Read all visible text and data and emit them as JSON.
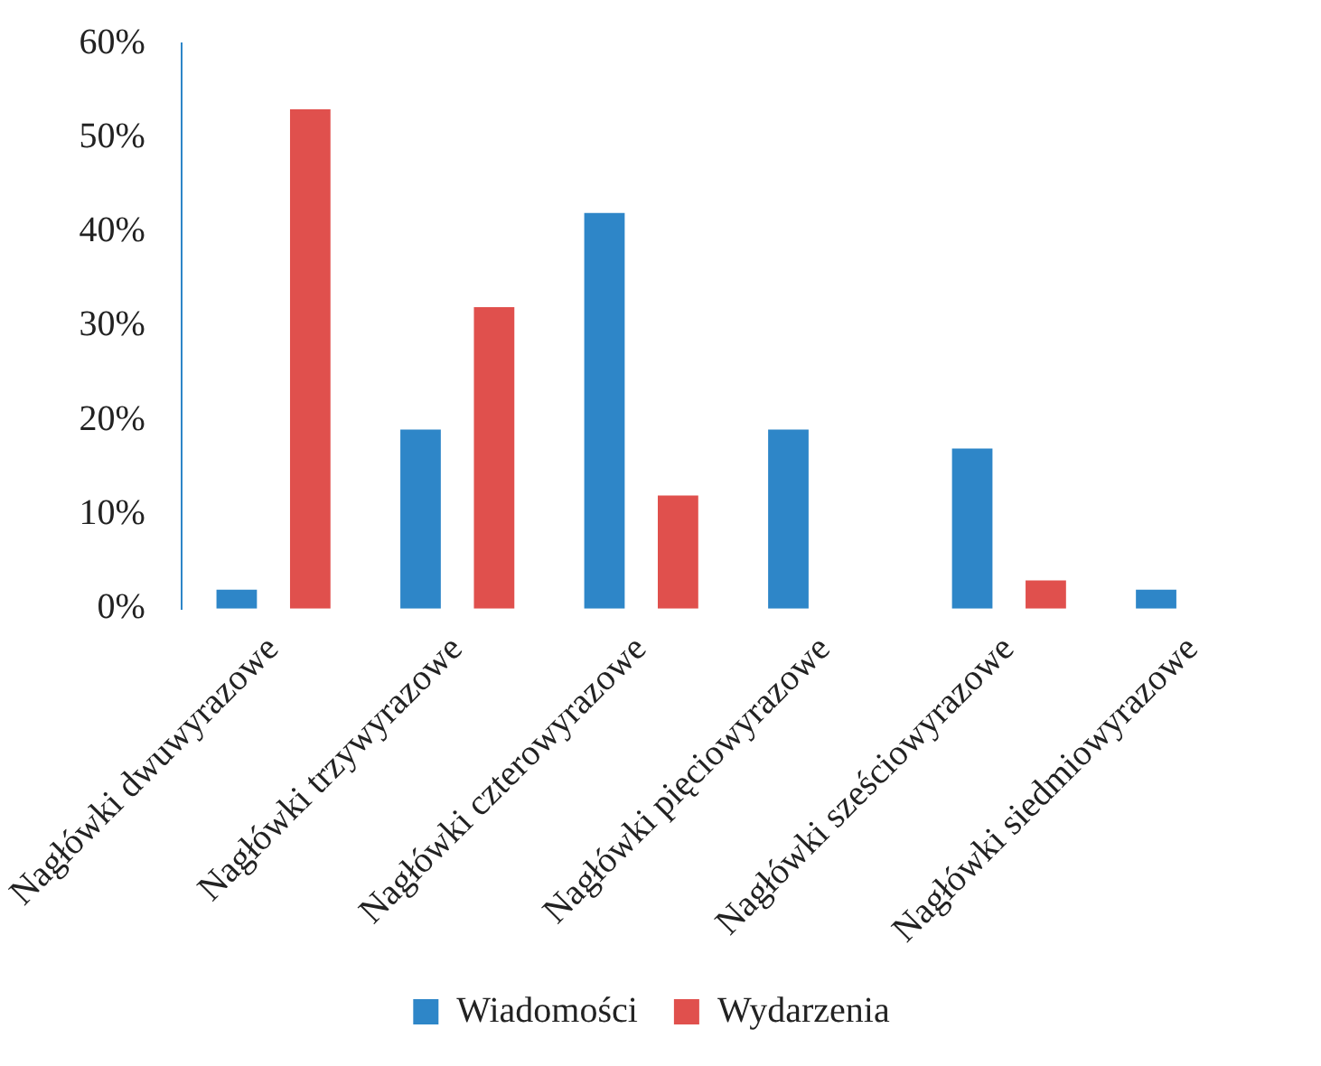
{
  "chart_data": {
    "type": "bar",
    "categories": [
      "Nagłówki dwuwyrazowe",
      "Nagłówki trzywyrazowe",
      "Nagłówki czterowyrazowe",
      "Nagłówki pięciowyrazowe",
      "Nagłówki sześciowyrazowe",
      "Nagłówki siedmiowyrazowe"
    ],
    "series": [
      {
        "name": "Wiadomości",
        "color": "#2e86c8",
        "values": [
          2,
          19,
          42,
          19,
          17,
          2
        ]
      },
      {
        "name": "Wydarzenia",
        "color": "#e0504d",
        "values": [
          53,
          32,
          12,
          0,
          3,
          0
        ]
      }
    ],
    "ylim": [
      0,
      60
    ],
    "yticks": [
      {
        "value": 0,
        "label": "0%"
      },
      {
        "value": 10,
        "label": "10%"
      },
      {
        "value": 20,
        "label": "20%"
      },
      {
        "value": 30,
        "label": "30%"
      },
      {
        "value": 40,
        "label": "40%"
      },
      {
        "value": 50,
        "label": "50%"
      },
      {
        "value": 60,
        "label": "60%"
      }
    ],
    "grid": false,
    "legend": "bottom"
  }
}
